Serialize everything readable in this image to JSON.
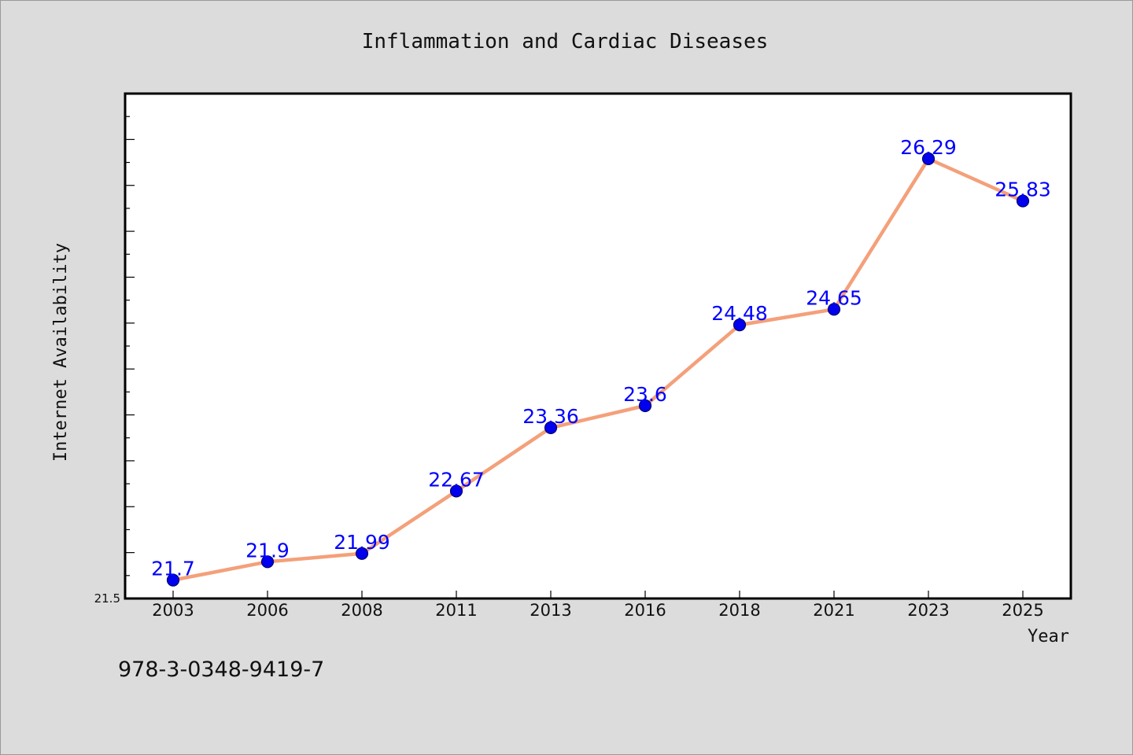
{
  "chart_data": {
    "type": "line",
    "title": "Inflammation and Cardiac Diseases",
    "xlabel": "Year",
    "ylabel": "Internet Availability",
    "categories": [
      "2003",
      "2006",
      "2008",
      "2011",
      "2013",
      "2016",
      "2018",
      "2021",
      "2023",
      "2025"
    ],
    "series": [
      {
        "values": [
          21.7,
          21.9,
          21.99,
          22.67,
          23.36,
          23.6,
          24.48,
          24.65,
          26.29,
          25.83
        ],
        "labels": [
          "21.7",
          "21.9",
          "21.99",
          "22.67",
          "23.36",
          "23.6",
          "24.48",
          "24.65",
          "26.29",
          "25.83"
        ],
        "line_color": "#f4a07a",
        "marker_color": "#0000ee"
      }
    ],
    "ylim": [
      21.5,
      27.0
    ],
    "yticks_labeled": [
      "21.5"
    ],
    "grid": false,
    "legend": "none"
  },
  "footer": {
    "code": "978-3-0348-9419-7"
  }
}
